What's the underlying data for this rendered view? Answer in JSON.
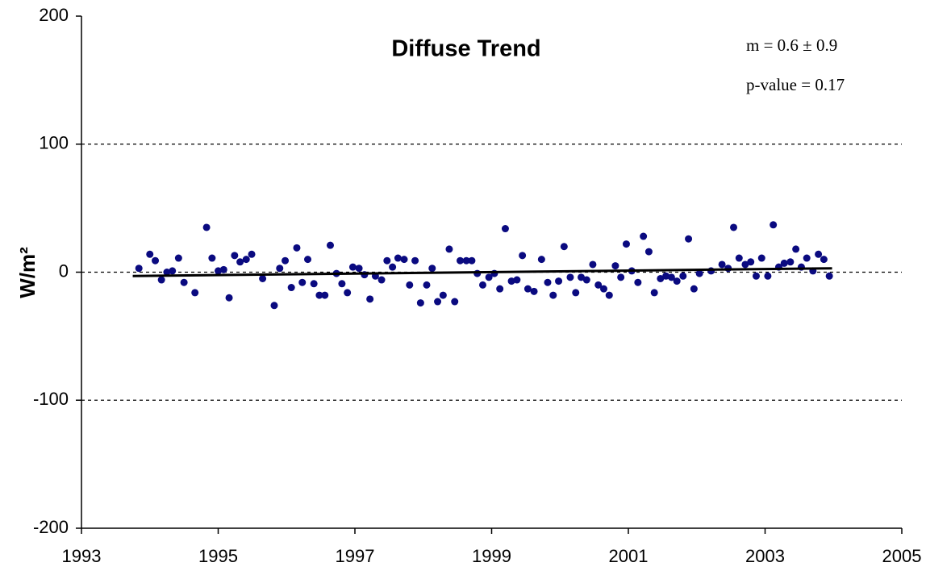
{
  "chart_data": {
    "type": "scatter",
    "title": "Diffuse Trend",
    "ylabel": "W/m²",
    "annotations": [
      "m = 0.6 ± 0.9",
      "p-value = 0.17"
    ],
    "xlim": [
      1993,
      2005
    ],
    "xticks": [
      1993,
      1995,
      1997,
      1999,
      2001,
      2003,
      2005
    ],
    "ylim": [
      -200,
      200
    ],
    "yticks": [
      -200,
      -100,
      0,
      100,
      200
    ],
    "grid": true,
    "series": [
      {
        "color": "#0a0a80",
        "x": [
          1993.84,
          1994.0,
          1994.08,
          1994.17,
          1994.25,
          1994.33,
          1994.42,
          1994.5,
          1994.66,
          1994.83,
          1994.91,
          1995.0,
          1995.08,
          1995.16,
          1995.24,
          1995.32,
          1995.41,
          1995.49,
          1995.65,
          1995.82,
          1995.9,
          1995.98,
          1996.07,
          1996.15,
          1996.23,
          1996.31,
          1996.4,
          1996.48,
          1996.56,
          1996.64,
          1996.73,
          1996.81,
          1996.89,
          1996.97,
          1997.06,
          1997.14,
          1997.22,
          1997.3,
          1997.39,
          1997.47,
          1997.55,
          1997.63,
          1997.72,
          1997.8,
          1997.88,
          1997.96,
          1998.05,
          1998.13,
          1998.21,
          1998.29,
          1998.38,
          1998.46,
          1998.54,
          1998.63,
          1998.71,
          1998.79,
          1998.87,
          1998.96,
          1999.04,
          1999.12,
          1999.2,
          1999.29,
          1999.37,
          1999.45,
          1999.53,
          1999.62,
          1999.73,
          1999.82,
          1999.9,
          1999.98,
          2000.06,
          2000.15,
          2000.23,
          2000.31,
          2000.39,
          2000.48,
          2000.56,
          2000.64,
          2000.72,
          2000.81,
          2000.89,
          2000.97,
          2001.05,
          2001.14,
          2001.22,
          2001.3,
          2001.38,
          2001.47,
          2001.55,
          2001.63,
          2001.71,
          2001.8,
          2001.88,
          2001.96,
          2002.04,
          2002.21,
          2002.37,
          2002.46,
          2002.54,
          2002.62,
          2002.71,
          2002.79,
          2002.87,
          2002.95,
          2003.04,
          2003.12,
          2003.2,
          2003.28,
          2003.37,
          2003.45,
          2003.53,
          2003.61,
          2003.7,
          2003.78,
          2003.86,
          2003.94
        ],
        "values": [
          3,
          14,
          9,
          -6,
          0,
          1,
          11,
          -8,
          -16,
          35,
          11,
          1,
          2,
          -20,
          13,
          8,
          10,
          14,
          -5,
          -26,
          3,
          9,
          -12,
          19,
          -8,
          10,
          -9,
          -18,
          -18,
          21,
          -1,
          -9,
          -16,
          4,
          3,
          -2,
          -21,
          -3,
          -6,
          9,
          4,
          11,
          10,
          -10,
          9,
          -24,
          -10,
          3,
          -23,
          -18,
          18,
          -23,
          9,
          9,
          9,
          -1,
          -10,
          -4,
          -1,
          -13,
          34,
          -7,
          -6,
          13,
          -13,
          -15,
          10,
          -8,
          -18,
          -7,
          20,
          -4,
          -16,
          -4,
          -6,
          6,
          -10,
          -13,
          -18,
          5,
          -4,
          22,
          1,
          -8,
          28,
          16,
          -16,
          -5,
          -3,
          -4,
          -7,
          -3,
          26,
          -13,
          -1,
          1,
          6,
          3,
          35,
          11,
          6,
          8,
          -3,
          11,
          -3,
          37,
          4,
          7,
          8,
          18,
          4,
          11,
          1,
          14,
          10,
          -3
        ]
      }
    ],
    "trendline": {
      "color": "#000000",
      "x": [
        1993.75,
        2003.98
      ],
      "values": [
        -3,
        3
      ]
    }
  }
}
